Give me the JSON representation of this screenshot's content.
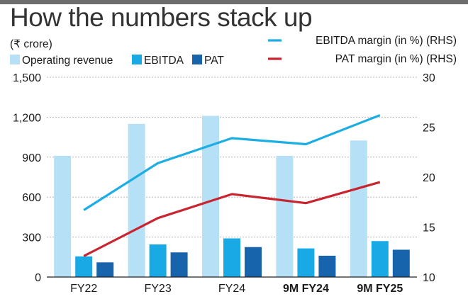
{
  "title": "How the numbers stack up",
  "chart_data": {
    "type": "bar",
    "unit_label": "(₹ crore)",
    "categories": [
      "FY22",
      "FY23",
      "FY24",
      "9M FY24",
      "9M FY25"
    ],
    "bold_categories": [
      "9M FY24",
      "9M FY25"
    ],
    "series": [
      {
        "name": "Operating revenue",
        "values": [
          910,
          1150,
          1210,
          910,
          1025
        ],
        "color": "#b5e0f6",
        "axis": "left"
      },
      {
        "name": "EBITDA",
        "values": [
          155,
          245,
          290,
          215,
          270
        ],
        "color": "#19aae6",
        "axis": "left"
      },
      {
        "name": "PAT",
        "values": [
          110,
          185,
          225,
          160,
          205
        ],
        "color": "#1763ac",
        "axis": "left"
      }
    ],
    "line_series": [
      {
        "name": "EBITDA margin (in %) (RHS)",
        "values": [
          16.7,
          21.4,
          23.9,
          23.3,
          26.2
        ],
        "color": "#1caee3",
        "axis": "right"
      },
      {
        "name": "PAT margin (in %) (RHS)",
        "values": [
          12.1,
          15.9,
          18.3,
          17.4,
          19.5
        ],
        "color": "#c92531",
        "axis": "right"
      }
    ],
    "y_left": {
      "min": 0,
      "max": 1500,
      "ticks": [
        0,
        300,
        600,
        900,
        1200,
        1500
      ],
      "tick_labels": [
        "0",
        "300",
        "600",
        "900",
        "1,200",
        "1,500"
      ]
    },
    "y_right": {
      "min": 10,
      "max": 30,
      "ticks": [
        10,
        15,
        20,
        25,
        30
      ],
      "tick_labels": [
        "10",
        "15",
        "20",
        "25",
        "30"
      ]
    },
    "grid": true,
    "legend_position": "top"
  }
}
